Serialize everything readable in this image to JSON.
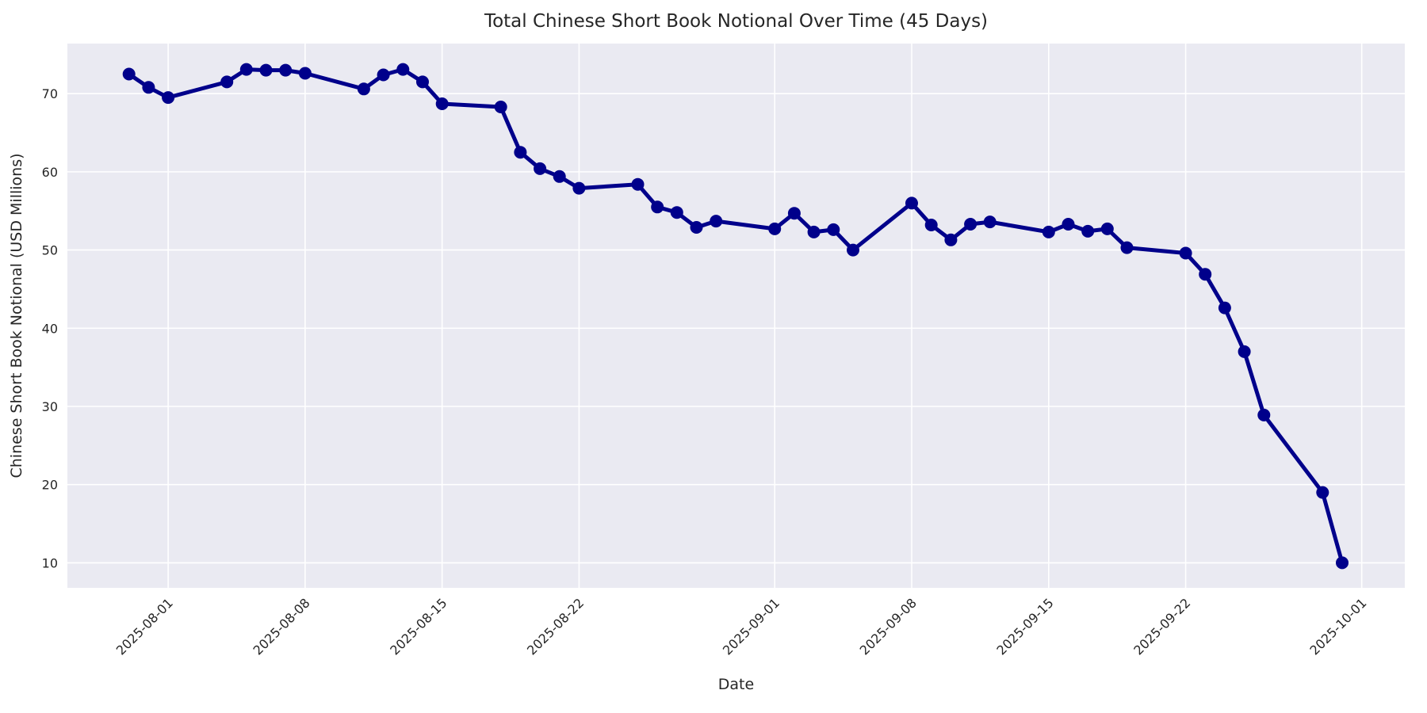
{
  "chart_data": {
    "type": "line",
    "title": "Total Chinese Short Book Notional Over Time (45 Days)",
    "xlabel": "Date",
    "ylabel": "Chinese Short Book Notional (USD Millions)",
    "grid": true,
    "legend_position": "none",
    "plot_bg_color": "#eaeaf2",
    "grid_color": "#ffffff",
    "text_color": "#262626",
    "x_ticks": [
      "2025-08-01",
      "2025-08-08",
      "2025-08-15",
      "2025-08-22",
      "2025-09-01",
      "2025-09-08",
      "2025-09-15",
      "2025-09-22",
      "2025-10-01"
    ],
    "x_tick_rotation": 45,
    "y_ticks": [
      10,
      20,
      30,
      40,
      50,
      60,
      70
    ],
    "ylim": [
      6.8,
      76.4
    ],
    "xlim_days": [
      -5.15,
      63.2
    ],
    "series": [
      {
        "name": "Total Chinese Short Book Notional",
        "color": "#00008b",
        "marker": "circle",
        "marker_size": 8,
        "line_width": 5,
        "x": [
          "2025-07-30",
          "2025-07-31",
          "2025-08-01",
          "2025-08-04",
          "2025-08-05",
          "2025-08-06",
          "2025-08-07",
          "2025-08-08",
          "2025-08-11",
          "2025-08-12",
          "2025-08-13",
          "2025-08-14",
          "2025-08-15",
          "2025-08-18",
          "2025-08-19",
          "2025-08-20",
          "2025-08-21",
          "2025-08-22",
          "2025-08-25",
          "2025-08-26",
          "2025-08-27",
          "2025-08-28",
          "2025-08-29",
          "2025-09-01",
          "2025-09-02",
          "2025-09-03",
          "2025-09-04",
          "2025-09-05",
          "2025-09-08",
          "2025-09-09",
          "2025-09-10",
          "2025-09-11",
          "2025-09-12",
          "2025-09-15",
          "2025-09-16",
          "2025-09-17",
          "2025-09-18",
          "2025-09-19",
          "2025-09-22",
          "2025-09-23",
          "2025-09-24",
          "2025-09-25",
          "2025-09-26",
          "2025-09-29",
          "2025-09-30"
        ],
        "values": [
          72.5,
          70.8,
          69.5,
          71.5,
          73.1,
          73.0,
          73.0,
          72.6,
          70.6,
          72.4,
          73.1,
          71.5,
          68.7,
          68.3,
          62.5,
          60.4,
          59.4,
          57.9,
          58.4,
          55.5,
          54.8,
          52.9,
          53.7,
          52.7,
          54.7,
          52.3,
          52.6,
          50.0,
          56.0,
          53.2,
          51.3,
          53.3,
          53.6,
          52.3,
          53.3,
          52.4,
          52.7,
          50.3,
          49.6,
          46.9,
          42.6,
          37.0,
          28.9,
          19.0,
          10.0
        ]
      }
    ]
  }
}
